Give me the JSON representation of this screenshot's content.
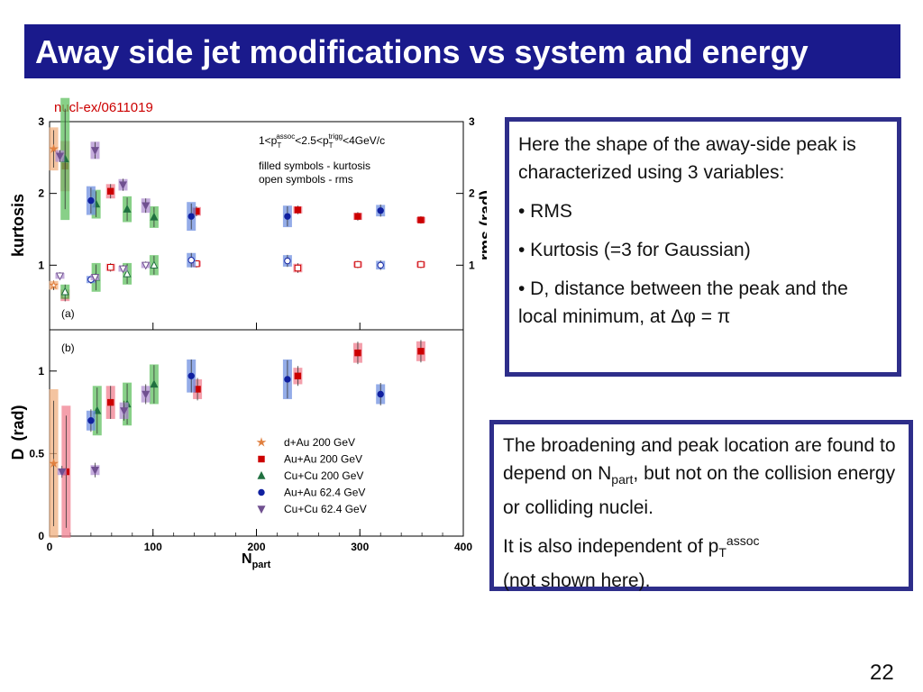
{
  "slide": {
    "title": "Away side jet modifications vs system and energy",
    "reference": "nucl-ex/0611019",
    "page_number": "22",
    "title_bar_color": "#1a1a8c",
    "box_border_color": "#2e2e8a"
  },
  "box1": {
    "intro": "Here the shape of the away-side peak is characterized using 3 variables:",
    "bullets": [
      "• RMS",
      "• Kurtosis (=3 for Gaussian)",
      "• D, distance between the peak and the local minimum, at Δφ = π"
    ]
  },
  "box2": {
    "line1_pre": "The broadening and peak location are found to depend on N",
    "line1_sub": "part",
    "line1_post": ", but not on the collision energy or colliding nuclei.",
    "line2_pre": "It is also independent of p",
    "line2_sub": "T",
    "line2_sup": "assoc",
    "line2_post": "(not shown here)."
  },
  "chart_data": {
    "type": "scatter",
    "xlabel_main": "N",
    "xlabel_sub": "part",
    "xlim": [
      0,
      400
    ],
    "x_ticks": [
      "0",
      "100",
      "200",
      "300",
      "400"
    ],
    "cut_text": {
      "p1": "1<p",
      "sub1": "T",
      "sup1": "assoc",
      "p2": "<2.5<p",
      "sub2": "T",
      "sup2": "trigg",
      "p3": "<4GeV/c"
    },
    "note_filled": "filled symbols - kurtosis",
    "note_open": "open symbols - rms",
    "legend_position": "bottom-right of panel (b)",
    "series_style": [
      {
        "name": "d+Au 200 GeV",
        "color": "#e08040",
        "band": "#f0b080",
        "marker": "star"
      },
      {
        "name": "Au+Au 200 GeV",
        "color": "#cc0000",
        "band": "#f08090",
        "marker": "square"
      },
      {
        "name": "Cu+Cu 200 GeV",
        "color": "#207040",
        "band": "#60c060",
        "marker": "triangle-up"
      },
      {
        "name": "Au+Au 62.4 GeV",
        "color": "#1020a0",
        "band": "#7090e0",
        "marker": "circle"
      },
      {
        "name": "Cu+Cu 62.4 GeV",
        "color": "#705090",
        "band": "#b090d0",
        "marker": "triangle-down"
      }
    ],
    "panels": [
      {
        "label": "(a)",
        "ylabel_left": "kurtosis",
        "ylabel_right": "rms (rad)",
        "ylim": [
          0.1,
          3
        ],
        "y_ticks": [
          "1",
          "2",
          "3"
        ],
        "series": [
          {
            "name": "d+Au 200 GeV",
            "kurtosis": [
              [
                4,
                2.62
              ]
            ],
            "kurtosis_band": [
              0.3
            ],
            "rms": [
              [
                4,
                0.72
              ]
            ],
            "rms_band": [
              0.06
            ]
          },
          {
            "name": "Au+Au 200 GeV",
            "kurtosis": [
              [
                15,
                2.38
              ],
              [
                59,
                2.03
              ],
              [
                142,
                1.75
              ],
              [
                240,
                1.77
              ],
              [
                298,
                1.68
              ],
              [
                359,
                1.63
              ]
            ],
            "kurtosis_band": [
              0.35,
              0.1,
              0.06,
              0.05,
              0.05,
              0.04
            ],
            "rms": [
              [
                15,
                0.58
              ],
              [
                59,
                0.97
              ],
              [
                142,
                1.02
              ],
              [
                240,
                0.96
              ],
              [
                298,
                1.01
              ],
              [
                359,
                1.01
              ]
            ],
            "rms_band": [
              0.08,
              0.05,
              0.04,
              0.06,
              0.04,
              0.04
            ]
          },
          {
            "name": "Cu+Cu 200 GeV",
            "kurtosis": [
              [
                15,
                2.48
              ],
              [
                45,
                1.85
              ],
              [
                75,
                1.78
              ],
              [
                101,
                1.67
              ]
            ],
            "kurtosis_band": [
              0.85,
              0.2,
              0.18,
              0.15
            ],
            "rms": [
              [
                15,
                0.63
              ],
              [
                45,
                0.83
              ],
              [
                75,
                0.88
              ],
              [
                101,
                1.0
              ]
            ],
            "rms_band": [
              0.1,
              0.2,
              0.15,
              0.14
            ]
          },
          {
            "name": "Au+Au 62.4 GeV",
            "kurtosis": [
              [
                40,
                1.9
              ],
              [
                137,
                1.68
              ],
              [
                230,
                1.68
              ],
              [
                320,
                1.76
              ]
            ],
            "kurtosis_band": [
              0.2,
              0.2,
              0.15,
              0.08
            ],
            "rms": [
              [
                40,
                0.8
              ],
              [
                137,
                1.07
              ],
              [
                230,
                1.06
              ],
              [
                320,
                1.0
              ]
            ],
            "rms_band": [
              0.05,
              0.1,
              0.08,
              0.06
            ]
          },
          {
            "name": "Cu+Cu 62.4 GeV",
            "kurtosis": [
              [
                10,
                2.52
              ],
              [
                44,
                2.6
              ],
              [
                71,
                2.12
              ],
              [
                93,
                1.83
              ]
            ],
            "kurtosis_band": [
              0.08,
              0.12,
              0.08,
              0.1
            ],
            "rms": [
              [
                10,
                0.85
              ],
              [
                44,
                0.83
              ],
              [
                71,
                0.95
              ],
              [
                93,
                1.0
              ]
            ],
            "rms_band": [
              0.04,
              0.04,
              0.04,
              0.04
            ]
          }
        ]
      },
      {
        "label": "(b)",
        "ylabel_main": "D",
        "ylabel_unit": "(rad)",
        "ylim": [
          0,
          1.25
        ],
        "y_ticks": [
          "0",
          "0.5",
          "1"
        ],
        "series": [
          {
            "name": "d+Au 200 GeV",
            "points": [
              [
                4,
                0.44
              ]
            ],
            "band": [
              0.45
            ]
          },
          {
            "name": "Au+Au 200 GeV",
            "points": [
              [
                16,
                0.39
              ],
              [
                59,
                0.81
              ],
              [
                143,
                0.89
              ],
              [
                240,
                0.97
              ],
              [
                298,
                1.11
              ],
              [
                359,
                1.12
              ]
            ],
            "band": [
              0.4,
              0.1,
              0.06,
              0.05,
              0.06,
              0.06
            ]
          },
          {
            "name": "Cu+Cu 200 GeV",
            "points": [
              [
                46,
                0.76
              ],
              [
                75,
                0.8
              ],
              [
                101,
                0.92
              ]
            ],
            "band": [
              0.15,
              0.13,
              0.12
            ]
          },
          {
            "name": "Au+Au 62.4 GeV",
            "points": [
              [
                40,
                0.7
              ],
              [
                137,
                0.97
              ],
              [
                230,
                0.95
              ],
              [
                320,
                0.86
              ]
            ],
            "band": [
              0.06,
              0.1,
              0.12,
              0.06
            ]
          },
          {
            "name": "Cu+Cu 62.4 GeV",
            "points": [
              [
                12,
                0.39
              ],
              [
                44,
                0.4
              ],
              [
                72,
                0.76
              ],
              [
                93,
                0.86
              ]
            ],
            "band": [
              0.02,
              0.03,
              0.05,
              0.05
            ]
          }
        ]
      }
    ]
  }
}
